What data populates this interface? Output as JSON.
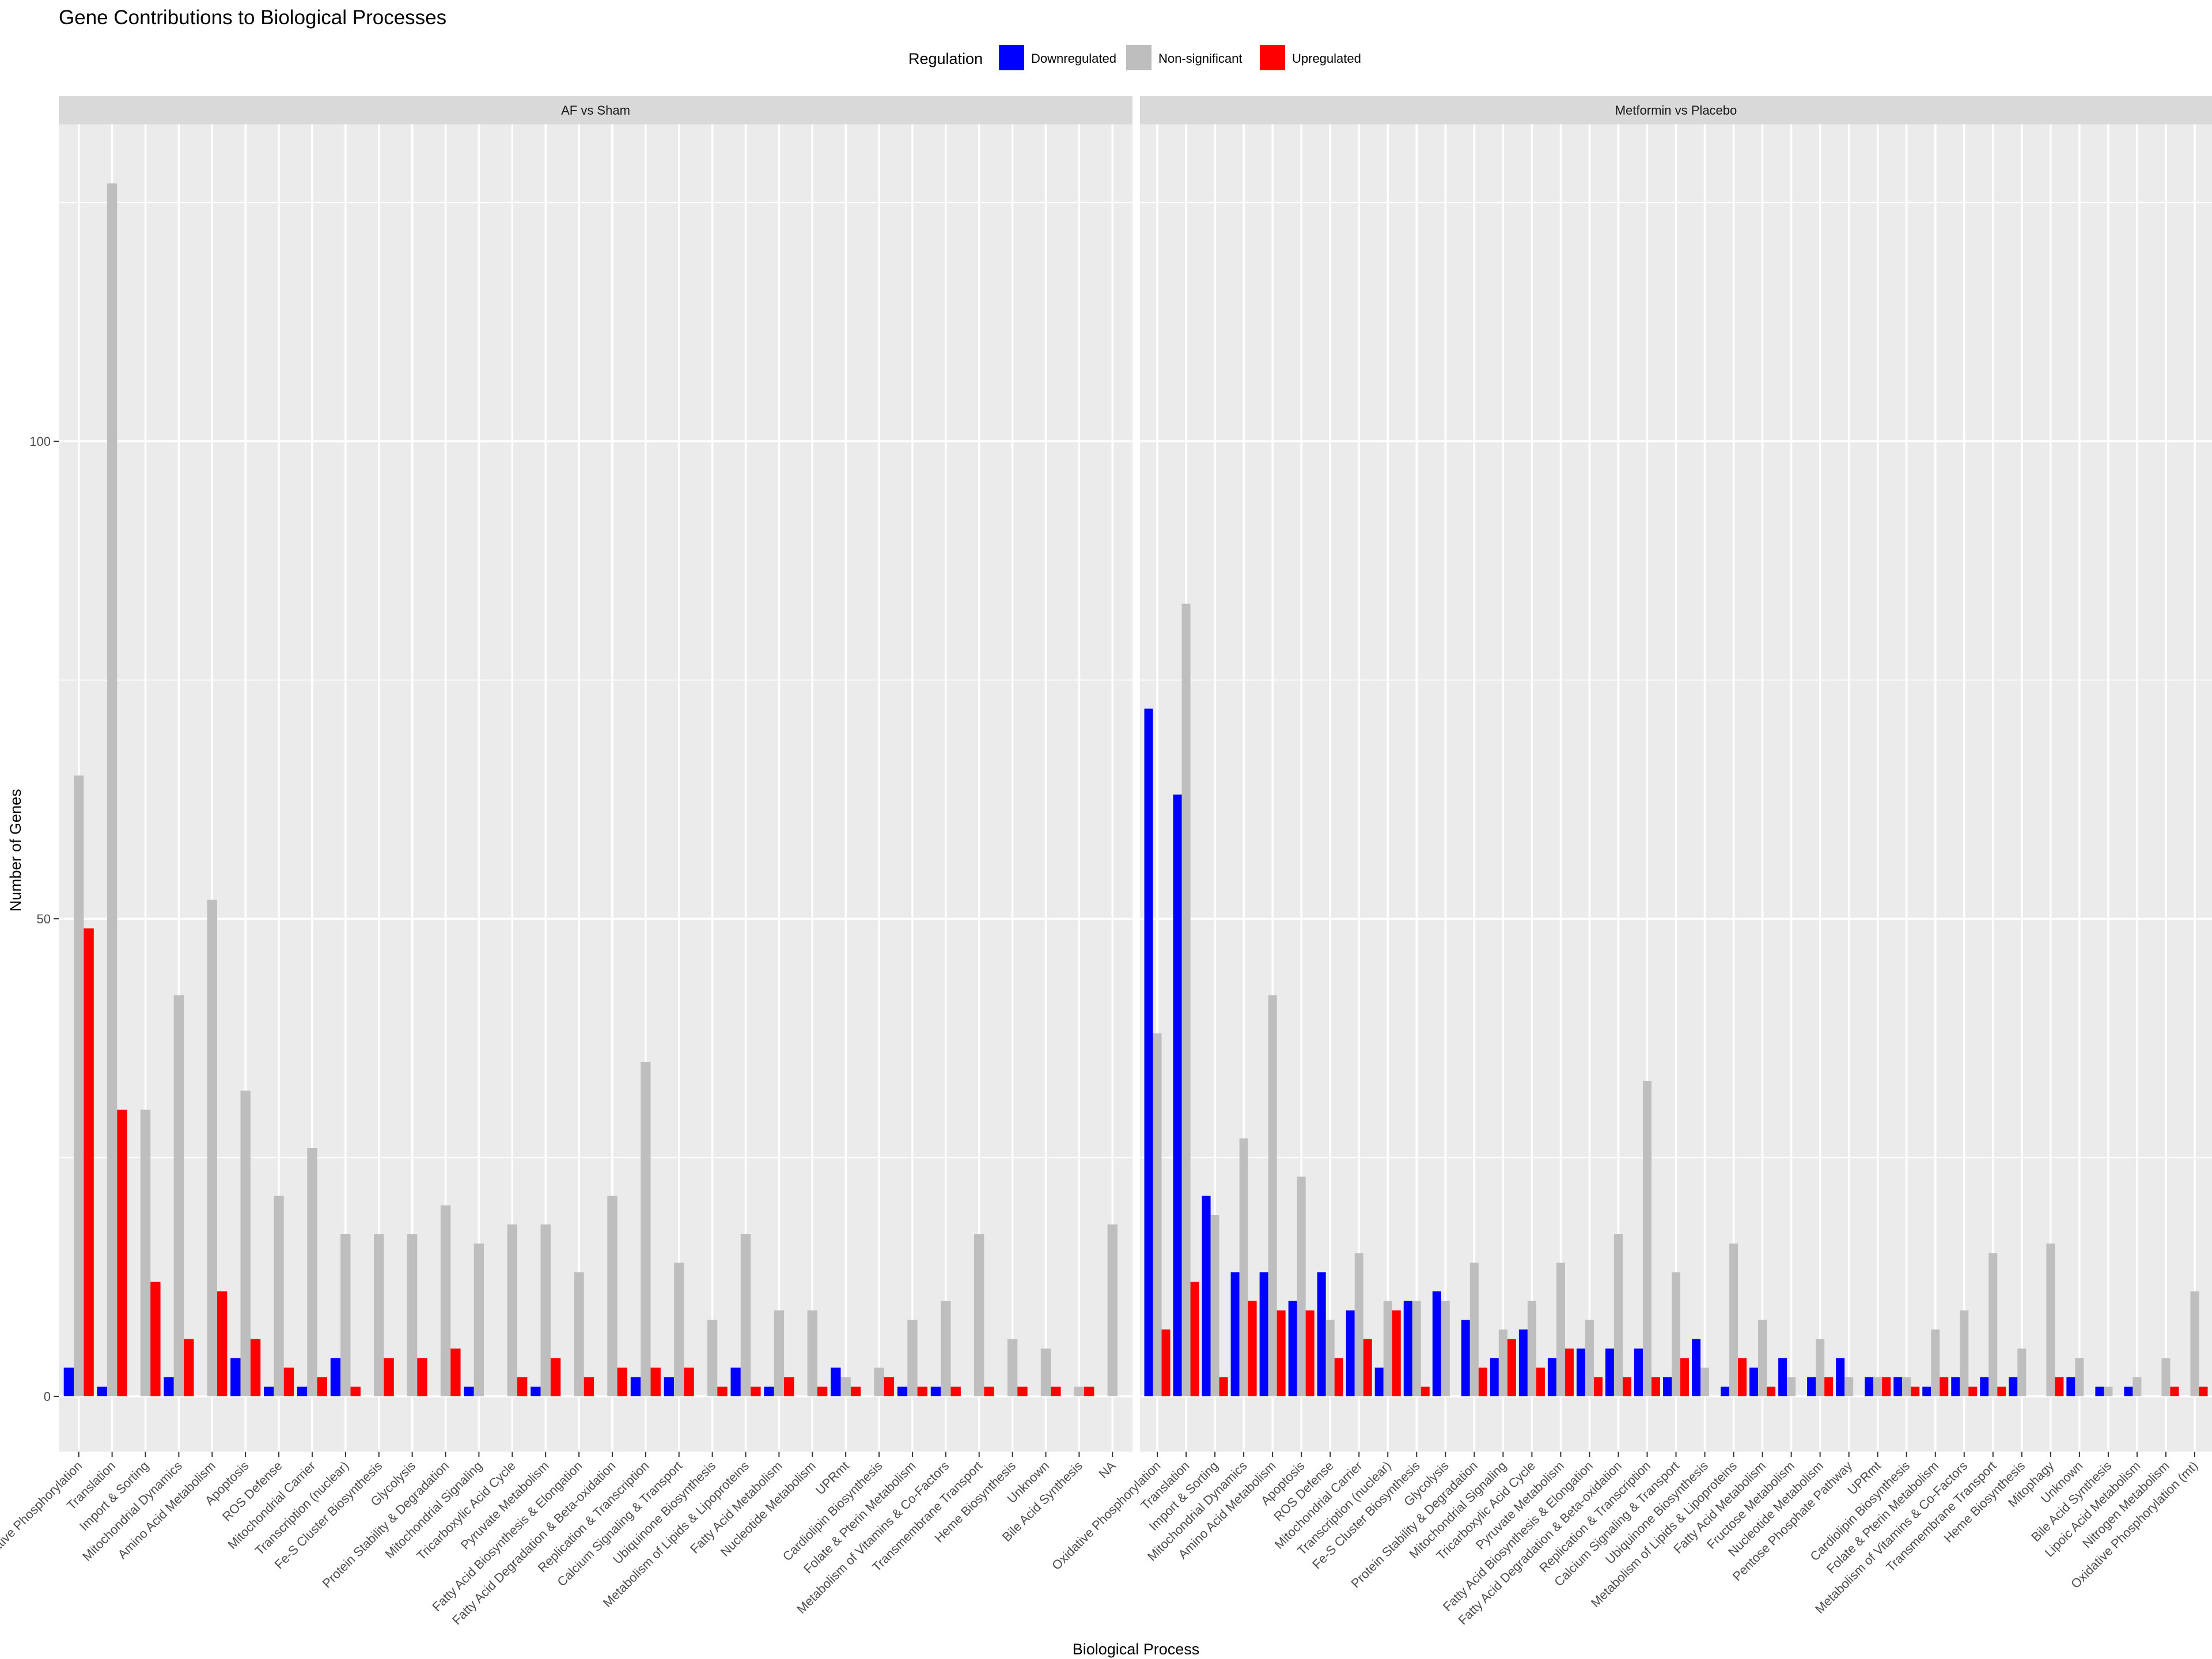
{
  "chart_data": {
    "type": "bar",
    "title": "Gene Contributions to Biological Processes",
    "xlabel": "Biological Process",
    "ylabel": "Number of Genes",
    "ylim": [
      0,
      130
    ],
    "yticks": [
      0,
      50,
      100
    ],
    "grid": true,
    "legend": {
      "title": "Regulation",
      "position": "top",
      "entries": [
        {
          "name": "Downregulated",
          "color": "#0000ff"
        },
        {
          "name": "Non-significant",
          "color": "#bebebe"
        },
        {
          "name": "Upregulated",
          "color": "#ff0000"
        }
      ]
    },
    "colors": {
      "Downregulated": "#0000ff",
      "Non-significant": "#bebebe",
      "Upregulated": "#ff0000",
      "panel_background": "#ebebeb",
      "strip_background": "#d9d9d9",
      "grid": "#ffffff"
    },
    "panels": [
      {
        "label": "AF vs Sham",
        "categories": [
          "Oxidative Phosphorylation",
          "Translation",
          "Import & Sorting",
          "Mitochondrial Dynamics",
          "Amino Acid Metabolism",
          "Apoptosis",
          "ROS Defense",
          "Mitochondrial Carrier",
          "Transcription (nuclear)",
          "Fe-S Cluster Biosynthesis",
          "Glycolysis",
          "Protein Stability & Degradation",
          "Mitochondrial Signaling",
          "Tricarboxylic Acid Cycle",
          "Pyruvate Metabolism",
          "Fatty Acid Biosynthesis & Elongation",
          "Fatty Acid Degradation & Beta-oxidation",
          "Replication & Transcription",
          "Calcium Signaling & Transport",
          "Ubiquinone Biosynthesis",
          "Metabolism of Lipids & Lipoproteins",
          "Fatty Acid Metabolism",
          "Nucleotide Metabolism",
          "UPRmt",
          "Cardiolipin Biosynthesis",
          "Folate & Pterin Metabolism",
          "Metabolism of Vitamins & Co-Factors",
          "Transmembrane Transport",
          "Heme Biosynthesis",
          "Unknown",
          "Bile Acid Synthesis",
          "NA"
        ],
        "series": [
          {
            "name": "Downregulated",
            "values": [
              3,
              1,
              0,
              2,
              0,
              4,
              1,
              1,
              4,
              0,
              0,
              0,
              1,
              0,
              1,
              0,
              0,
              2,
              2,
              0,
              3,
              1,
              0,
              3,
              0,
              1,
              1,
              0,
              0,
              0,
              0,
              0
            ]
          },
          {
            "name": "Non-significant",
            "values": [
              65,
              127,
              30,
              42,
              52,
              32,
              21,
              26,
              17,
              17,
              17,
              20,
              16,
              18,
              18,
              13,
              21,
              35,
              14,
              8,
              17,
              9,
              9,
              2,
              3,
              8,
              10,
              17,
              6,
              5,
              1,
              18
            ]
          },
          {
            "name": "Upregulated",
            "values": [
              49,
              30,
              12,
              6,
              11,
              6,
              3,
              2,
              1,
              4,
              4,
              5,
              0,
              2,
              4,
              2,
              3,
              3,
              3,
              1,
              1,
              2,
              1,
              1,
              2,
              1,
              1,
              1,
              1,
              1,
              1,
              0
            ]
          }
        ]
      },
      {
        "label": "Metformin vs Placebo",
        "categories": [
          "Oxidative Phosphorylation",
          "Translation",
          "Import & Sorting",
          "Mitochondrial Dynamics",
          "Amino Acid Metabolism",
          "Apoptosis",
          "ROS Defense",
          "Mitochondrial Carrier",
          "Transcription (nuclear)",
          "Fe-S Cluster Biosynthesis",
          "Glycolysis",
          "Protein Stability & Degradation",
          "Mitochondrial Signaling",
          "Tricarboxylic Acid Cycle",
          "Pyruvate Metabolism",
          "Fatty Acid Biosynthesis & Elongation",
          "Fatty Acid Degradation & Beta-oxidation",
          "Replication & Transcription",
          "Calcium Signaling & Transport",
          "Ubiquinone Biosynthesis",
          "Metabolism of Lipids & Lipoproteins",
          "Fatty Acid Metabolism",
          "Fructose Metabolism",
          "Nucleotide Metabolism",
          "Pentose Phosphate Pathway",
          "UPRmt",
          "Cardiolipin Biosynthesis",
          "Folate & Pterin Metabolism",
          "Metabolism of Vitamins & Co-Factors",
          "Transmembrane Transport",
          "Heme Biosynthesis",
          "Mitophagy",
          "Unknown",
          "Bile Acid Synthesis",
          "Lipoic Acid Metabolism",
          "Nitrogen Metabolism",
          "Oxidative Phosphorylation (mt)"
        ],
        "series": [
          {
            "name": "Downregulated",
            "values": [
              72,
              63,
              21,
              13,
              13,
              10,
              13,
              9,
              3,
              10,
              11,
              8,
              4,
              7,
              4,
              5,
              5,
              5,
              2,
              6,
              1,
              3,
              4,
              2,
              4,
              2,
              2,
              1,
              2,
              2,
              2,
              0,
              2,
              1,
              1,
              0,
              0
            ]
          },
          {
            "name": "Non-significant",
            "values": [
              38,
              83,
              19,
              27,
              42,
              23,
              8,
              15,
              10,
              10,
              10,
              14,
              7,
              10,
              14,
              8,
              17,
              33,
              13,
              3,
              16,
              8,
              2,
              6,
              2,
              2,
              2,
              7,
              9,
              15,
              5,
              16,
              4,
              1,
              2,
              4,
              11
            ]
          },
          {
            "name": "Upregulated",
            "values": [
              7,
              12,
              2,
              10,
              9,
              9,
              4,
              6,
              9,
              1,
              0,
              3,
              6,
              3,
              5,
              2,
              2,
              2,
              4,
              0,
              4,
              1,
              0,
              2,
              0,
              2,
              1,
              2,
              1,
              1,
              0,
              2,
              0,
              0,
              0,
              1,
              1
            ]
          }
        ]
      }
    ]
  }
}
